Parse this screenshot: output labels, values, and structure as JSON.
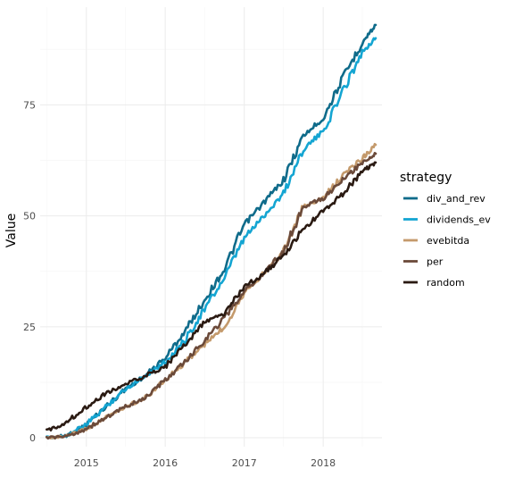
{
  "chart_data": {
    "type": "line",
    "title": "",
    "xlabel": "",
    "ylabel": "Value",
    "legend_title": "strategy",
    "legend_position": "right",
    "grid": true,
    "x_ticks": [
      "2015",
      "2016",
      "2017",
      "2018"
    ],
    "y_ticks": [
      0,
      25,
      50,
      75
    ],
    "xlim": [
      "2014-06-01",
      "2018-09-30"
    ],
    "ylim": [
      -2,
      97
    ],
    "series": [
      {
        "name": "div_and_rev",
        "color": "#0f6b8a",
        "points": [
          [
            "2014-07-01",
            0
          ],
          [
            "2014-10-01",
            0.5
          ],
          [
            "2015-01-01",
            3
          ],
          [
            "2015-04-01",
            7
          ],
          [
            "2015-07-01",
            11
          ],
          [
            "2015-10-01",
            14
          ],
          [
            "2016-01-01",
            18
          ],
          [
            "2016-04-01",
            24
          ],
          [
            "2016-07-01",
            31
          ],
          [
            "2016-10-01",
            38
          ],
          [
            "2017-01-01",
            48
          ],
          [
            "2017-04-01",
            53
          ],
          [
            "2017-07-01",
            58
          ],
          [
            "2017-10-01",
            68
          ],
          [
            "2018-01-01",
            72
          ],
          [
            "2018-04-01",
            81
          ],
          [
            "2018-07-01",
            89
          ],
          [
            "2018-09-01",
            93
          ]
        ]
      },
      {
        "name": "dividends_ev",
        "color": "#14a5d2",
        "points": [
          [
            "2014-07-01",
            0
          ],
          [
            "2014-10-01",
            0.5
          ],
          [
            "2015-01-01",
            3
          ],
          [
            "2015-04-01",
            7
          ],
          [
            "2015-07-01",
            11
          ],
          [
            "2015-10-01",
            14
          ],
          [
            "2016-01-01",
            17
          ],
          [
            "2016-04-01",
            22
          ],
          [
            "2016-07-01",
            29
          ],
          [
            "2016-10-01",
            36
          ],
          [
            "2017-01-01",
            45
          ],
          [
            "2017-04-01",
            50
          ],
          [
            "2017-07-01",
            55
          ],
          [
            "2017-10-01",
            65
          ],
          [
            "2018-01-01",
            69
          ],
          [
            "2018-04-01",
            78
          ],
          [
            "2018-07-01",
            87
          ],
          [
            "2018-09-01",
            90
          ]
        ]
      },
      {
        "name": "evebitda",
        "color": "#c49a6c",
        "points": [
          [
            "2014-07-01",
            0
          ],
          [
            "2014-10-01",
            0.3
          ],
          [
            "2015-01-01",
            2
          ],
          [
            "2015-04-01",
            4.5
          ],
          [
            "2015-07-01",
            7
          ],
          [
            "2015-10-01",
            9
          ],
          [
            "2016-01-01",
            13
          ],
          [
            "2016-04-01",
            17
          ],
          [
            "2016-07-01",
            21
          ],
          [
            "2016-10-01",
            25
          ],
          [
            "2017-01-01",
            33
          ],
          [
            "2017-04-01",
            37
          ],
          [
            "2017-07-01",
            42
          ],
          [
            "2017-10-01",
            52
          ],
          [
            "2018-01-01",
            54
          ],
          [
            "2018-04-01",
            59
          ],
          [
            "2018-07-01",
            63
          ],
          [
            "2018-09-01",
            66
          ]
        ]
      },
      {
        "name": "per",
        "color": "#6b4a3a",
        "points": [
          [
            "2014-07-01",
            0
          ],
          [
            "2014-10-01",
            0.3
          ],
          [
            "2015-01-01",
            2
          ],
          [
            "2015-04-01",
            4.5
          ],
          [
            "2015-07-01",
            7
          ],
          [
            "2015-10-01",
            9
          ],
          [
            "2016-01-01",
            13
          ],
          [
            "2016-04-01",
            17
          ],
          [
            "2016-07-01",
            22
          ],
          [
            "2016-10-01",
            27
          ],
          [
            "2017-01-01",
            33
          ],
          [
            "2017-04-01",
            37
          ],
          [
            "2017-07-01",
            42
          ],
          [
            "2017-10-01",
            52
          ],
          [
            "2018-01-01",
            54
          ],
          [
            "2018-04-01",
            58
          ],
          [
            "2018-07-01",
            62
          ],
          [
            "2018-09-01",
            64
          ]
        ]
      },
      {
        "name": "random",
        "color": "#2a1a12",
        "points": [
          [
            "2014-07-01",
            1.5
          ],
          [
            "2014-10-01",
            3.5
          ],
          [
            "2015-01-01",
            7
          ],
          [
            "2015-04-01",
            10
          ],
          [
            "2015-07-01",
            12
          ],
          [
            "2015-10-01",
            14
          ],
          [
            "2016-01-01",
            16
          ],
          [
            "2016-04-01",
            21
          ],
          [
            "2016-07-01",
            26
          ],
          [
            "2016-10-01",
            28
          ],
          [
            "2017-01-01",
            34
          ],
          [
            "2017-04-01",
            37
          ],
          [
            "2017-07-01",
            41
          ],
          [
            "2017-10-01",
            47
          ],
          [
            "2018-01-01",
            51
          ],
          [
            "2018-04-01",
            55
          ],
          [
            "2018-07-01",
            60
          ],
          [
            "2018-09-01",
            62
          ]
        ]
      }
    ]
  }
}
